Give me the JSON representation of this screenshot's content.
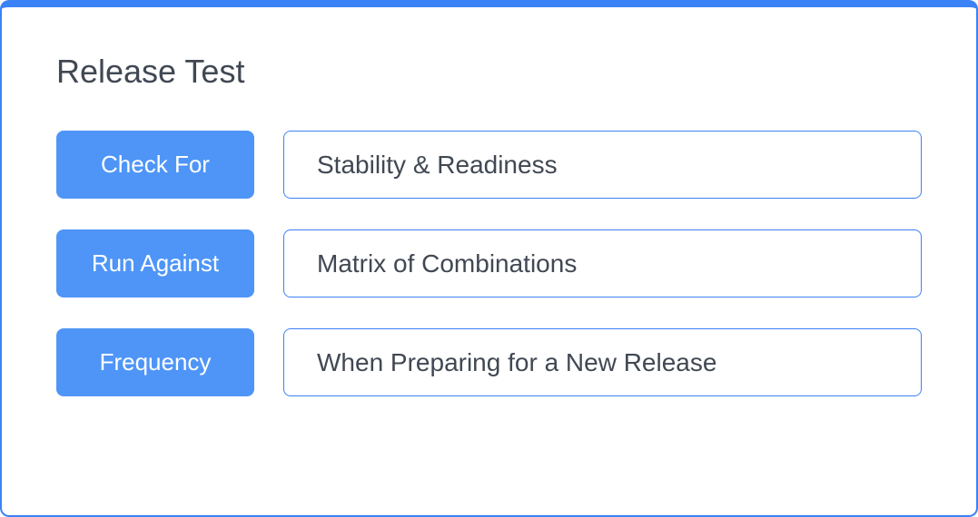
{
  "card": {
    "title": "Release Test",
    "rows": [
      {
        "label": "Check For",
        "value": "Stability & Readiness"
      },
      {
        "label": "Run Against",
        "value": "Matrix of Combinations"
      },
      {
        "label": "Frequency",
        "value": "When Preparing for a New Release"
      }
    ],
    "colors": {
      "border": "#3b82f6",
      "label_bg": "#4e95f7",
      "label_text": "#ffffff",
      "text": "#414853",
      "background": "#ffffff"
    }
  }
}
